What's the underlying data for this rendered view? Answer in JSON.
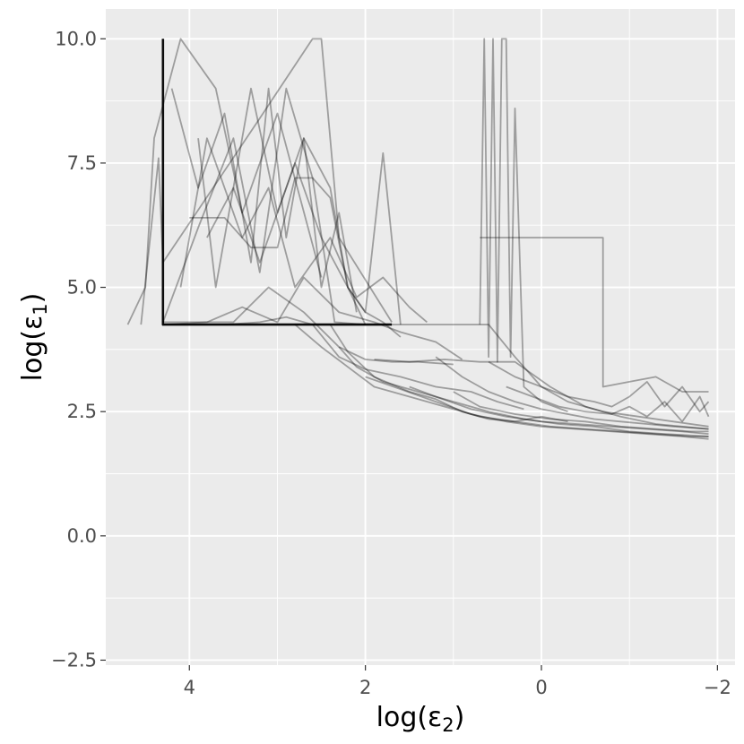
{
  "chart_data": {
    "type": "line",
    "title": "",
    "xlabel": {
      "main": "log(ε",
      "sub": "2",
      "close": ")"
    },
    "ylabel": {
      "main": "log(ε",
      "sub": "1",
      "close": ")"
    },
    "x_reversed": true,
    "xlim": [
      4.95,
      -2.2
    ],
    "ylim": [
      -2.6,
      10.6
    ],
    "x_ticks": [
      4,
      2,
      0,
      -2
    ],
    "x_tick_labels": [
      "4",
      "2",
      "0",
      "−2"
    ],
    "y_ticks": [
      -2.5,
      0,
      2.5,
      5,
      7.5,
      10
    ],
    "y_tick_labels": [
      "−2.5",
      "0.0",
      "2.5",
      "5.0",
      "7.5",
      "10.0"
    ],
    "grid": true,
    "legend": "none",
    "colors": {
      "panel": "#ebebeb",
      "grid": "#ffffff",
      "line": "#000000",
      "tick_text": "#4d4d4d",
      "tick_mark": "#333333"
    },
    "series": [
      {
        "x": [
          4.3,
          4.3,
          4.3,
          1.7
        ],
        "y": [
          10.0,
          4.5,
          4.25,
          4.25
        ],
        "bold": true
      },
      {
        "x": [
          4.55,
          4.35,
          4.3,
          3.2,
          2.6,
          2.5,
          2.3,
          1.7
        ],
        "y": [
          4.25,
          7.6,
          5.5,
          8.4,
          10.0,
          10.0,
          6.0,
          4.3
        ]
      },
      {
        "x": [
          4.7,
          4.5,
          4.4,
          4.1,
          3.7,
          3.4,
          3.0,
          2.5
        ],
        "y": [
          4.25,
          5.0,
          8.0,
          10.0,
          9.0,
          6.5,
          8.5,
          5.2
        ]
      },
      {
        "x": [
          4.3,
          3.9,
          3.5,
          3.2,
          2.9,
          2.6,
          2.35,
          2.0
        ],
        "y": [
          4.3,
          6.2,
          8.0,
          5.3,
          9.0,
          7.2,
          4.3,
          4.25
        ]
      },
      {
        "x": [
          4.3,
          3.8,
          3.4,
          3.0,
          2.7,
          2.3,
          1.9,
          1.6,
          1.2,
          0.9
        ],
        "y": [
          4.25,
          4.3,
          4.6,
          4.3,
          5.2,
          4.5,
          4.3,
          4.1,
          3.9,
          3.55
        ]
      },
      {
        "x": [
          4.3,
          3.6,
          3.2,
          2.9,
          2.6,
          2.3,
          2.0,
          1.6,
          1.2,
          0.8,
          0.5,
          0.2
        ],
        "y": [
          4.25,
          4.25,
          4.3,
          4.4,
          4.25,
          3.6,
          3.35,
          3.2,
          3.0,
          2.9,
          2.7,
          2.55
        ]
      },
      {
        "x": [
          2.4,
          2.2,
          1.9,
          1.5,
          1.2,
          0.9,
          0.6,
          0.3,
          0.0,
          -0.3
        ],
        "y": [
          4.25,
          3.7,
          3.2,
          2.9,
          2.75,
          2.5,
          2.35,
          2.3,
          2.4,
          2.3
        ]
      },
      {
        "x": [
          4.3,
          3.5,
          3.1,
          2.7,
          2.3,
          2.0,
          1.7,
          1.4,
          1.0
        ],
        "y": [
          4.3,
          4.3,
          5.0,
          4.5,
          3.8,
          3.55,
          3.5,
          3.5,
          3.45
        ]
      },
      {
        "x": [
          2.3,
          2.1,
          1.8,
          1.4,
          1.0,
          0.6,
          0.2,
          -0.2,
          -0.6,
          -1.0,
          -1.4,
          -1.9
        ],
        "y": [
          3.8,
          3.4,
          3.1,
          2.9,
          2.7,
          2.5,
          2.35,
          2.25,
          2.2,
          2.1,
          2.05,
          2.0
        ]
      },
      {
        "x": [
          2.0,
          1.6,
          1.2,
          0.8,
          0.4,
          0.0,
          -0.4,
          -0.8,
          -1.2,
          -1.6,
          -1.9
        ],
        "y": [
          3.2,
          2.95,
          2.7,
          2.45,
          2.3,
          2.2,
          2.15,
          2.1,
          2.05,
          2.0,
          1.95
        ]
      },
      {
        "x": [
          1.5,
          1.2,
          0.8,
          0.4,
          0.0,
          -0.4,
          -0.8,
          -1.2,
          -1.6,
          -1.9
        ],
        "y": [
          3.0,
          2.8,
          2.55,
          2.4,
          2.3,
          2.25,
          2.2,
          2.15,
          2.1,
          2.05
        ]
      },
      {
        "x": [
          1.0,
          0.7,
          0.3,
          -0.1,
          -0.5,
          -0.9,
          -1.3,
          -1.7,
          -1.9
        ],
        "y": [
          2.9,
          2.6,
          2.45,
          2.35,
          2.3,
          2.2,
          2.15,
          2.1,
          2.1
        ]
      },
      {
        "x": [
          1.9,
          1.5,
          1.1,
          0.7,
          0.3,
          -0.1,
          -0.5,
          -0.9,
          -1.3,
          -1.9
        ],
        "y": [
          3.55,
          3.5,
          3.55,
          3.5,
          3.5,
          3.0,
          2.6,
          2.4,
          2.25,
          2.15
        ]
      },
      {
        "x": [
          1.7,
          1.4,
          1.0,
          0.6,
          0.3,
          0.0,
          -0.3,
          -0.7,
          -1.1,
          -1.5,
          -1.9
        ],
        "y": [
          4.25,
          4.25,
          4.25,
          4.25,
          3.6,
          3.0,
          2.7,
          2.5,
          2.4,
          2.3,
          2.2
        ]
      },
      {
        "x": [
          0.7,
          0.65,
          0.6,
          0.55,
          0.5,
          0.45,
          0.4,
          0.35,
          0.3,
          0.2,
          0.0,
          -0.3
        ],
        "y": [
          4.25,
          10.0,
          3.6,
          10.0,
          3.5,
          10.0,
          10.0,
          3.6,
          8.6,
          3.0,
          2.7,
          2.5
        ]
      },
      {
        "x": [
          0.7,
          0.5,
          0.3,
          0.0,
          -0.3,
          -0.6,
          -0.7,
          -0.7,
          -1.0,
          -1.3,
          -1.6,
          -1.9
        ],
        "y": [
          6.0,
          6.0,
          6.0,
          6.0,
          6.0,
          6.0,
          6.0,
          3.0,
          3.1,
          3.2,
          2.9,
          2.9
        ]
      },
      {
        "x": [
          0.6,
          0.3,
          0.0,
          -0.3,
          -0.6,
          -0.8,
          -1.0,
          -1.2,
          -1.4,
          -1.6,
          -1.8,
          -1.9
        ],
        "y": [
          3.5,
          3.2,
          3.0,
          2.8,
          2.7,
          2.6,
          2.8,
          3.1,
          2.6,
          3.0,
          2.5,
          2.7
        ]
      },
      {
        "x": [
          0.4,
          0.1,
          -0.2,
          -0.5,
          -0.8,
          -1.0,
          -1.2,
          -1.4,
          -1.6,
          -1.8,
          -1.9
        ],
        "y": [
          3.0,
          2.8,
          2.6,
          2.5,
          2.45,
          2.6,
          2.4,
          2.7,
          2.3,
          2.8,
          2.4
        ]
      },
      {
        "x": [
          2.8,
          2.5,
          2.2,
          1.9,
          1.5,
          1.1,
          0.7,
          0.3,
          -0.1,
          -0.5,
          -0.9,
          -1.3,
          -1.7,
          -1.9
        ],
        "y": [
          4.25,
          3.8,
          3.4,
          3.0,
          2.8,
          2.6,
          2.4,
          2.3,
          2.2,
          2.15,
          2.1,
          2.05,
          2.0,
          2.0
        ]
      },
      {
        "x": [
          1.2,
          0.9,
          0.6,
          0.3,
          0.0,
          -0.3,
          -0.6,
          -0.9,
          -1.2,
          -1.5,
          -1.9
        ],
        "y": [
          3.6,
          3.2,
          2.9,
          2.7,
          2.55,
          2.45,
          2.35,
          2.3,
          2.25,
          2.2,
          2.15
        ]
      },
      {
        "x": [
          3.8,
          3.5,
          3.2,
          2.8,
          2.5,
          2.2,
          2.0,
          1.8,
          1.6
        ],
        "y": [
          6.0,
          7.0,
          5.5,
          7.5,
          6.0,
          5.0,
          4.5,
          4.3,
          4.0
        ]
      },
      {
        "x": [
          4.2,
          3.9,
          3.6,
          3.3,
          3.1,
          2.9,
          2.7,
          2.5,
          2.3,
          2.1
        ],
        "y": [
          9.0,
          7.0,
          8.5,
          5.5,
          9.0,
          6.0,
          8.0,
          5.0,
          6.5,
          4.5
        ]
      },
      {
        "x": [
          4.1,
          3.8,
          3.4,
          3.1,
          2.8,
          2.4,
          2.1,
          1.8,
          1.5,
          1.3
        ],
        "y": [
          5.0,
          8.0,
          6.0,
          7.0,
          5.0,
          6.0,
          4.8,
          5.2,
          4.6,
          4.3
        ]
      },
      {
        "x": [
          3.9,
          3.7,
          3.3,
          3.0,
          2.7,
          2.4,
          2.2,
          2.0,
          1.8,
          1.6
        ],
        "y": [
          8.0,
          5.0,
          9.0,
          6.5,
          8.0,
          7.0,
          5.0,
          4.5,
          7.7,
          4.25
        ]
      },
      {
        "x": [
          4.0,
          3.6,
          3.3,
          3.0,
          2.8,
          2.6,
          2.4,
          2.2,
          2.0
        ],
        "y": [
          6.4,
          6.4,
          5.8,
          5.8,
          7.2,
          7.2,
          6.8,
          5.0,
          4.25
        ]
      }
    ]
  }
}
